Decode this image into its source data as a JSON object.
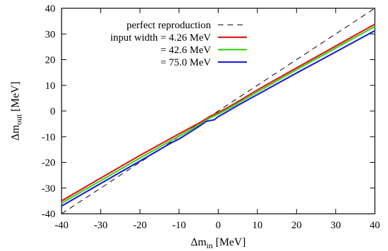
{
  "chart_data": {
    "type": "line",
    "xlabel": {
      "base": "Δm",
      "sub": "in",
      "unit": " [MeV]"
    },
    "ylabel": {
      "base": "Δm",
      "sub": "out",
      "unit": " [MeV]"
    },
    "xlim": [
      -40,
      40
    ],
    "ylim": [
      -40,
      40
    ],
    "xticks": [
      -40,
      -30,
      -20,
      -10,
      0,
      10,
      20,
      30,
      40
    ],
    "yticks": [
      -40,
      -30,
      -20,
      -10,
      0,
      10,
      20,
      30,
      40
    ],
    "grid": false,
    "legend_position": "top-left",
    "series": [
      {
        "name": "perfect reproduction",
        "color": "#000000",
        "style": "dashed",
        "x": [
          -40,
          40
        ],
        "y": [
          -40,
          40
        ]
      },
      {
        "name": "input width = 4.26 MeV",
        "color": "#e31a1c",
        "style": "solid",
        "x": [
          -40,
          -30,
          -20,
          -10,
          -5,
          -2,
          0,
          2,
          5,
          10,
          20,
          30,
          40
        ],
        "y": [
          -35.0,
          -26.1,
          -17.3,
          -8.9,
          -4.8,
          -2.0,
          -0.6,
          1.0,
          3.6,
          8.2,
          16.8,
          25.3,
          33.8
        ]
      },
      {
        "name": "= 42.6 MeV",
        "color": "#33dd11",
        "style": "solid",
        "x": [
          -40,
          -30,
          -20,
          -10,
          -5,
          -2,
          0,
          2,
          5,
          10,
          20,
          30,
          40
        ],
        "y": [
          -35.9,
          -27.1,
          -18.3,
          -9.8,
          -5.5,
          -2.6,
          -1.2,
          0.4,
          3.0,
          7.4,
          16.1,
          24.5,
          32.9
        ]
      },
      {
        "name": "= 75.0 MeV",
        "color": "#1f1fdd",
        "style": "solid",
        "x": [
          -40,
          -30,
          -20,
          -12,
          -10,
          -5,
          -3,
          -1,
          0,
          2,
          5,
          10,
          20,
          30,
          40
        ],
        "y": [
          -37.0,
          -28.2,
          -19.5,
          -12.4,
          -10.9,
          -6.1,
          -4.0,
          -3.4,
          -2.2,
          -0.5,
          2.2,
          6.4,
          14.8,
          23.0,
          31.3
        ]
      }
    ]
  }
}
